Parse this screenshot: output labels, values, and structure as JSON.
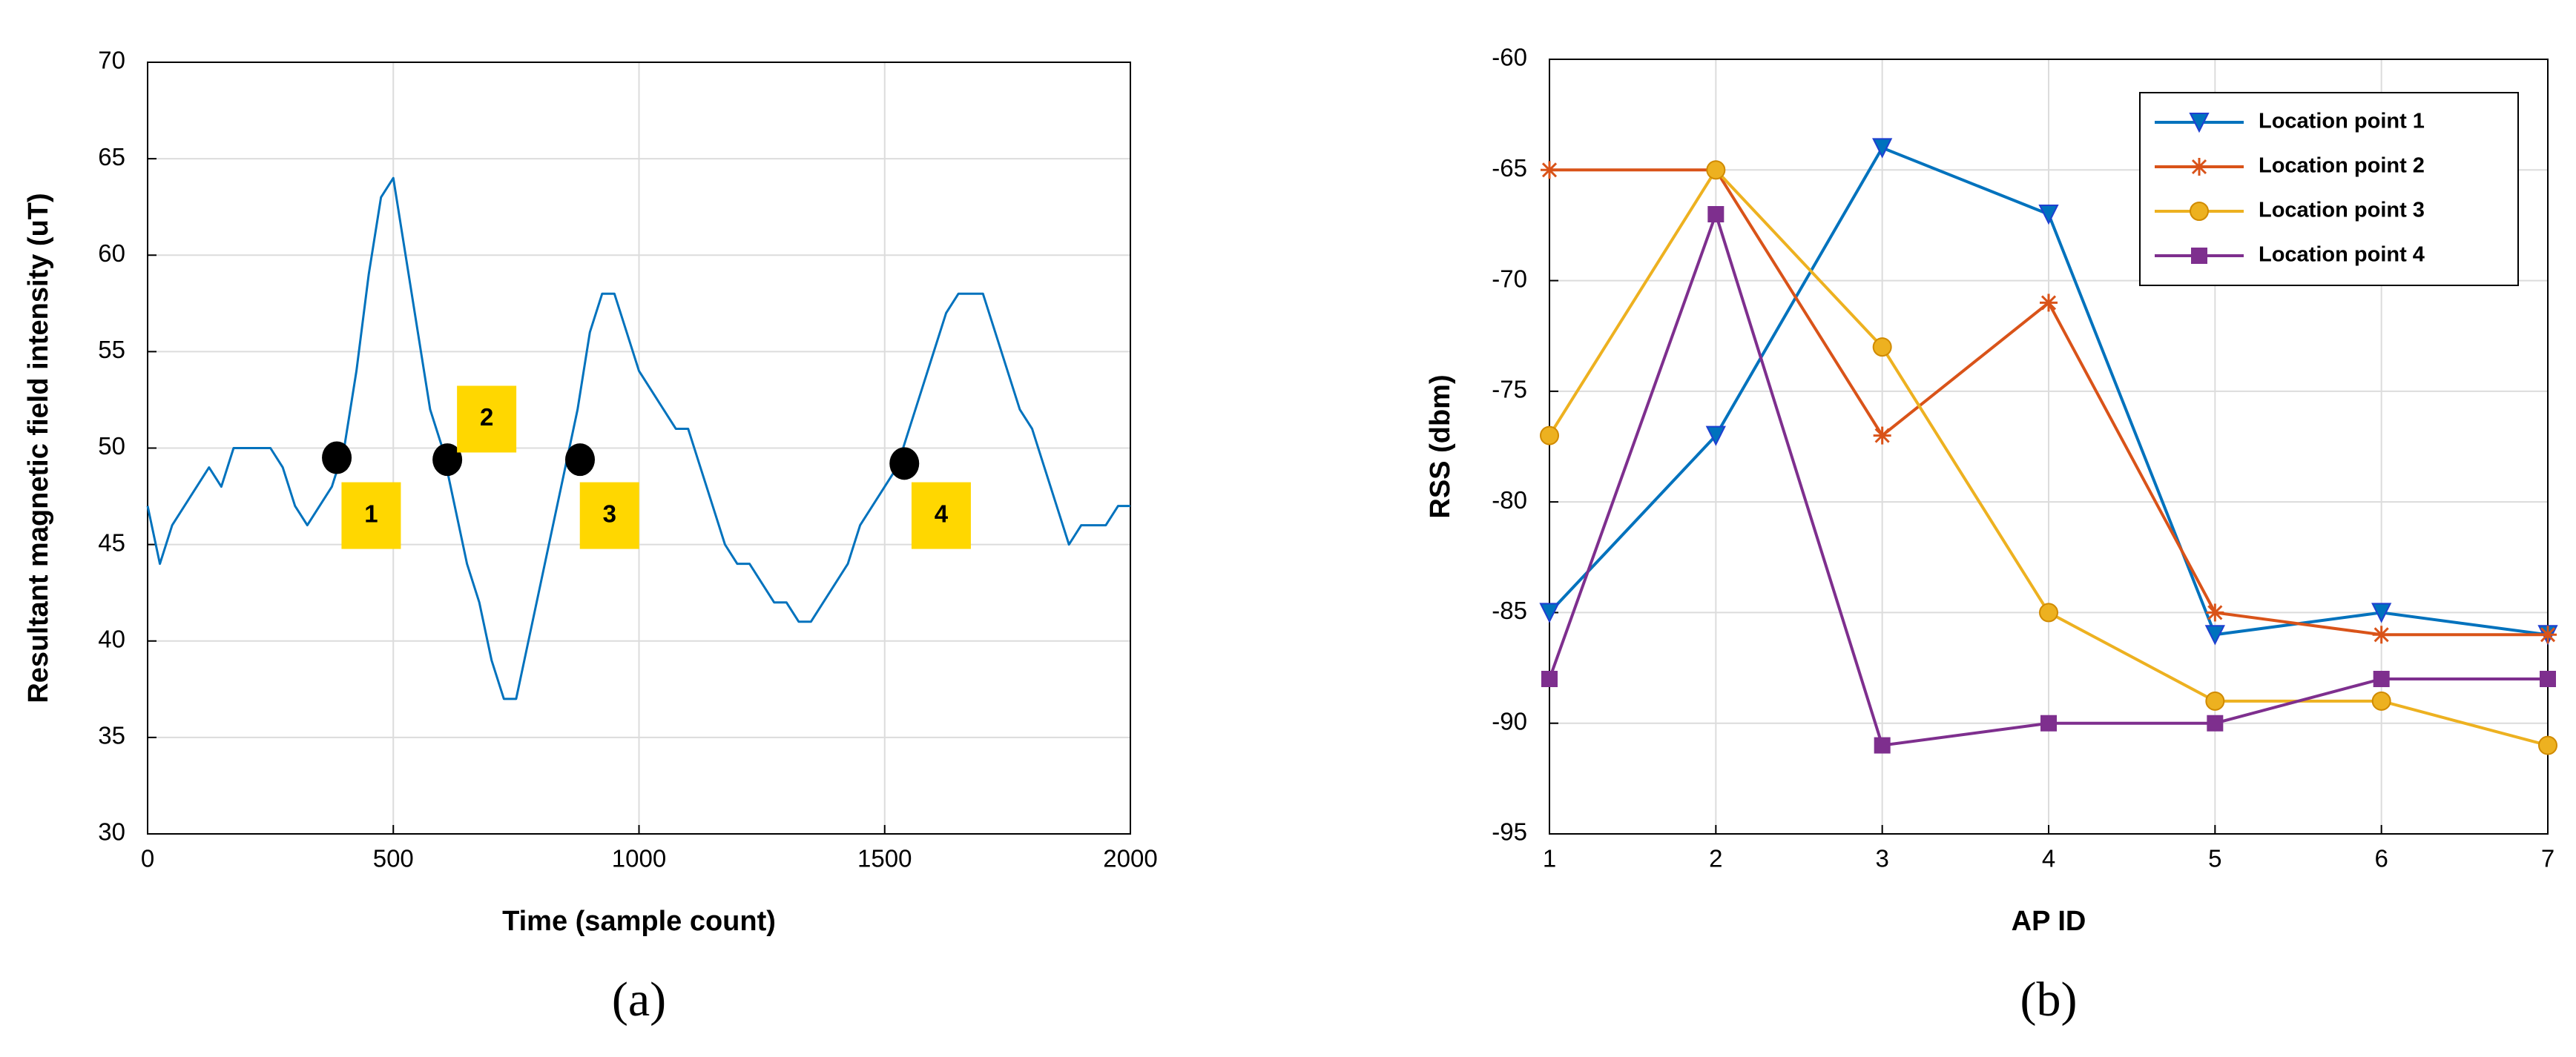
{
  "chart_data": [
    {
      "type": "line",
      "caption": "(a)",
      "xlabel": "Time (sample count)",
      "ylabel": "Resultant magnetic field intensity (uT)",
      "xlim": [
        0,
        2000
      ],
      "ylim": [
        30,
        70
      ],
      "xticks": [
        0,
        500,
        1000,
        1500,
        2000
      ],
      "yticks": [
        30,
        35,
        40,
        45,
        50,
        55,
        60,
        65,
        70
      ],
      "grid": true,
      "x": [
        0,
        25,
        50,
        75,
        100,
        125,
        150,
        175,
        200,
        225,
        250,
        275,
        300,
        325,
        350,
        375,
        400,
        425,
        450,
        475,
        500,
        525,
        550,
        575,
        600,
        625,
        650,
        675,
        700,
        725,
        750,
        775,
        800,
        825,
        850,
        875,
        900,
        925,
        950,
        975,
        1000,
        1025,
        1050,
        1075,
        1100,
        1125,
        1150,
        1175,
        1200,
        1225,
        1250,
        1275,
        1300,
        1325,
        1350,
        1375,
        1400,
        1425,
        1450,
        1475,
        1500,
        1525,
        1550,
        1575,
        1600,
        1625,
        1650,
        1675,
        1700,
        1725,
        1750,
        1775,
        1800,
        1825,
        1850,
        1875,
        1900,
        1925,
        1950,
        1975,
        2000
      ],
      "series": [
        {
          "color": "#0072bd",
          "values": [
            47,
            44,
            46,
            47,
            48,
            49,
            48,
            50,
            50,
            50,
            50,
            49,
            47,
            46,
            47,
            48,
            50,
            54,
            59,
            63,
            64,
            60,
            56,
            52,
            50,
            47,
            44,
            42,
            39,
            37,
            37,
            40,
            43,
            46,
            49,
            52,
            56,
            58,
            58,
            56,
            54,
            53,
            52,
            51,
            51,
            49,
            47,
            45,
            44,
            44,
            43,
            42,
            42,
            41,
            41,
            42,
            43,
            44,
            46,
            47,
            48,
            49,
            51,
            53,
            55,
            57,
            58,
            58,
            58,
            56,
            54,
            52,
            51,
            49,
            47,
            45,
            46,
            46,
            46,
            47,
            47
          ]
        }
      ],
      "markers": {
        "x": [
          385,
          610,
          880,
          1540
        ],
        "y": [
          49.5,
          49.4,
          49.4,
          49.2
        ]
      },
      "annotations": [
        {
          "text": "1",
          "x": 455,
          "y": 46.5
        },
        {
          "text": "2",
          "x": 690,
          "y": 51.5
        },
        {
          "text": "3",
          "x": 940,
          "y": 46.5
        },
        {
          "text": "4",
          "x": 1615,
          "y": 46.5
        }
      ]
    },
    {
      "type": "line",
      "caption": "(b)",
      "xlabel": "AP ID",
      "ylabel": "RSS (dbm)",
      "xlim": [
        1,
        7
      ],
      "ylim": [
        -95,
        -60
      ],
      "xticks": [
        1,
        2,
        3,
        4,
        5,
        6,
        7
      ],
      "yticks": [
        -95,
        -90,
        -85,
        -80,
        -75,
        -70,
        -65,
        -60
      ],
      "grid": true,
      "legend": "upper right",
      "x": [
        1,
        2,
        3,
        4,
        5,
        6,
        7
      ],
      "series": [
        {
          "name": "Location point 1",
          "color": "#0072bd",
          "marker": "triangle-down",
          "values": [
            -85,
            -77,
            -64,
            -67,
            -86,
            -85,
            -86
          ]
        },
        {
          "name": "Location point 2",
          "color": "#d95319",
          "marker": "star",
          "values": [
            -65,
            -65,
            -77,
            -71,
            -85,
            -86,
            -86
          ]
        },
        {
          "name": "Location point 3",
          "color": "#edb120",
          "marker": "circle",
          "values": [
            -77,
            -65,
            -73,
            -85,
            -89,
            -89,
            -91
          ]
        },
        {
          "name": "Location point 4",
          "color": "#7e2f8e",
          "marker": "square",
          "values": [
            -88,
            -67,
            -91,
            -90,
            -90,
            -88,
            -88
          ]
        }
      ]
    }
  ]
}
